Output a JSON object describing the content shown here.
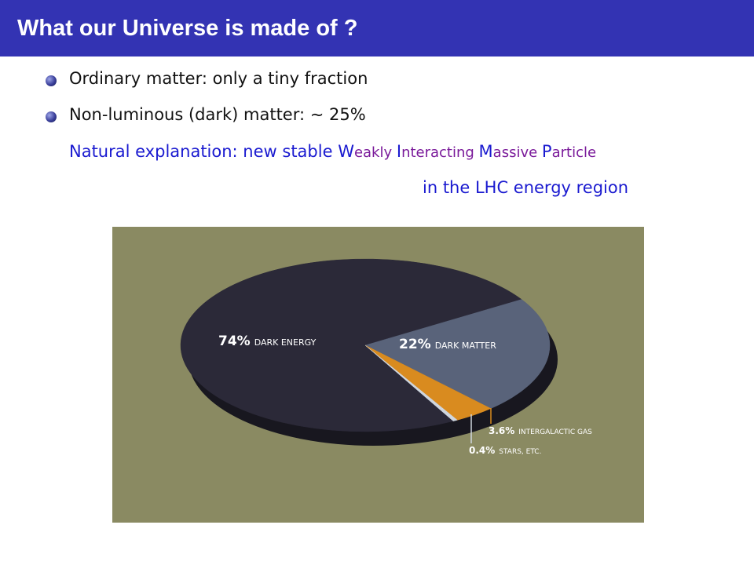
{
  "header": {
    "title": "What our Universe is made of ?"
  },
  "bullets": [
    "Ordinary matter: only a tiny fraction",
    "Non-luminous (dark) matter: ∼ 25%"
  ],
  "note": {
    "parts": [
      "Natural explanation: new stable ",
      "W",
      "eakly ",
      "I",
      "nteracting ",
      "M",
      "assive ",
      "P",
      "article"
    ],
    "line2": "in the LHC energy region"
  },
  "chart_data": {
    "type": "pie",
    "categories": [
      "DARK ENERGY",
      "DARK MATTER",
      "INTERGALACTIC GAS",
      "STARS, ETC."
    ],
    "values": [
      74,
      22,
      3.6,
      0.4
    ],
    "value_labels": [
      "74%",
      "22%",
      "3.6%",
      "0.4%"
    ],
    "colors": [
      "#2b2938",
      "#59637a",
      "#d98b1f",
      "#cfd6de"
    ]
  }
}
